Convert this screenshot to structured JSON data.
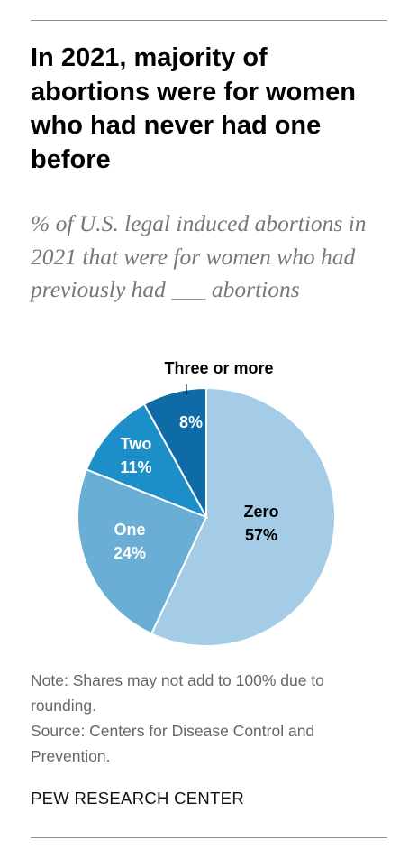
{
  "title": "In 2021, majority of abortions were for women who had never had one before",
  "subtitle": "% of U.S. legal induced abortions in 2021 that were for women who had previously had ___ abortions",
  "chart_data": {
    "type": "pie",
    "title": "In 2021, majority of abortions were for women who had never had one before",
    "subtitle": "% of U.S. legal induced abortions in 2021 that were for women who had previously had ___ abortions",
    "unit": "%",
    "slices": [
      {
        "name": "Zero",
        "value": 57,
        "label": "57%",
        "color": "#a4cce6"
      },
      {
        "name": "One",
        "value": 24,
        "label": "24%",
        "color": "#6aaed6"
      },
      {
        "name": "Two",
        "value": 11,
        "label": "11%",
        "color": "#1c8fc9"
      },
      {
        "name": "Three or more",
        "value": 8,
        "label": "8%",
        "color": "#0e6ba6"
      }
    ]
  },
  "note": "Note: Shares may not add to 100% due to rounding.",
  "source": "Source: Centers for Disease Control and Prevention.",
  "brand": "PEW RESEARCH CENTER"
}
